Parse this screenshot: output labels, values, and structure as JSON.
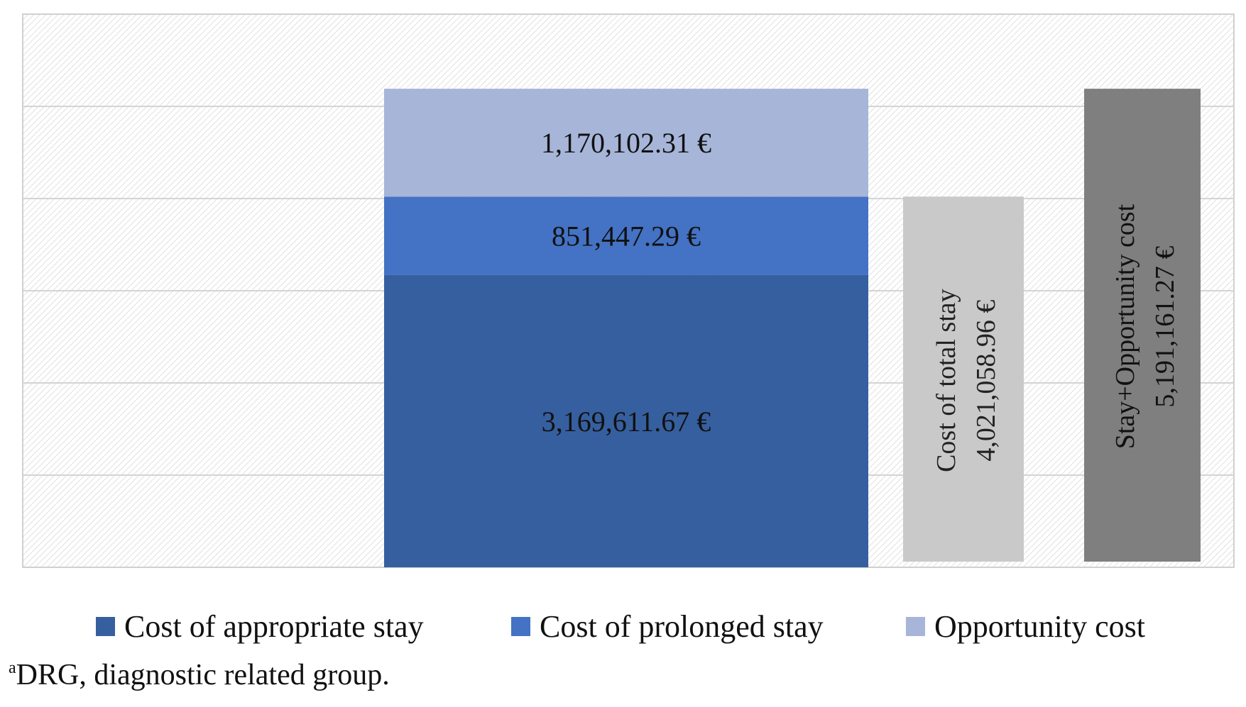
{
  "chart_data": {
    "type": "bar",
    "title": "",
    "xlabel": "",
    "ylabel": "",
    "ylim": [
      0,
      6000000
    ],
    "grid": true,
    "legend_position": "bottom",
    "stacked_bar": {
      "series": [
        {
          "name": "Cost of appropriate stay",
          "value": 3169611.67,
          "label": "3,169,611.67 €",
          "color": "#365f9f"
        },
        {
          "name": "Cost of prolonged stay",
          "value": 851447.29,
          "label": "851,447.29 €",
          "color": "#4472c4"
        },
        {
          "name": "Opportunity cost",
          "value": 1170102.31,
          "label": "1,170,102.31 €",
          "color": "#a6b5d8"
        }
      ]
    },
    "total_bars": [
      {
        "label_line1": "Cost of total stay",
        "label_line2": "4,021,058.96 €",
        "value": 4021058.96,
        "color": "#c9c9c9",
        "text_color": "#222222"
      },
      {
        "label_line1": "Stay+Opportunity cost",
        "label_line2": "5,191,161.27 €",
        "value": 5191161.27,
        "color": "#7f7f7f",
        "text_color": "#111111"
      }
    ]
  },
  "footnote": {
    "marker": "a",
    "text": "DRG, diagnostic related group."
  }
}
